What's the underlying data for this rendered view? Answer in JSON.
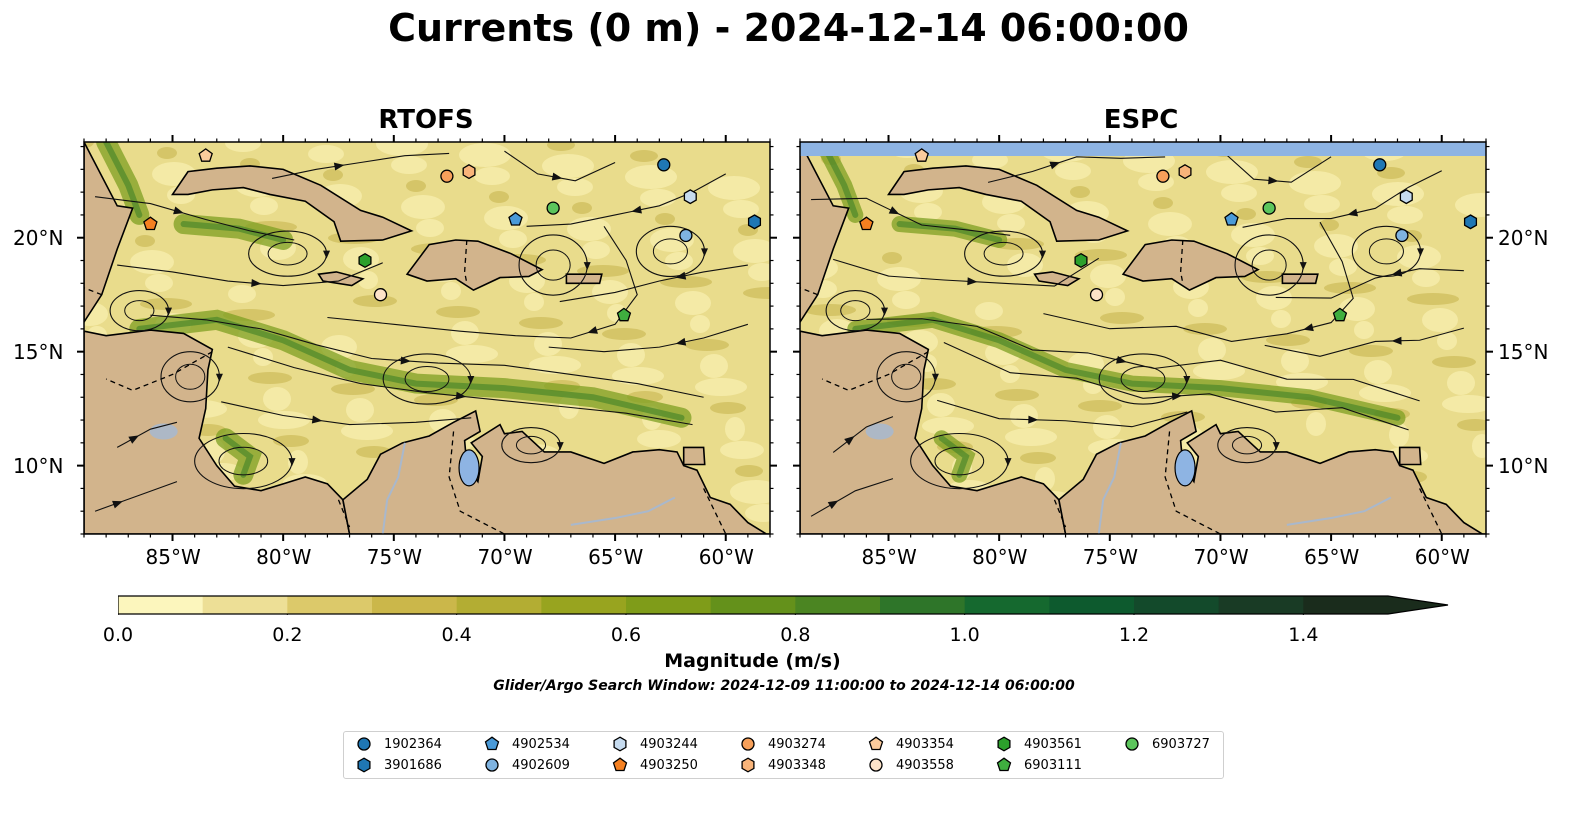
{
  "title": "Currents (0 m) - 2024-12-14 06:00:00",
  "panels": [
    {
      "title": "RTOFS"
    },
    {
      "title": "ESPC"
    }
  ],
  "lon_labels": [
    "85°W",
    "80°W",
    "75°W",
    "70°W",
    "65°W",
    "60°W"
  ],
  "lat_labels": [
    "20°N",
    "15°N",
    "10°N"
  ],
  "map_extent": {
    "lon": [
      -89,
      -58
    ],
    "lat": [
      7,
      24.2
    ]
  },
  "colorbar": {
    "label": "Magnitude (m/s)",
    "ticks": [
      "0.0",
      "0.2",
      "0.4",
      "0.6",
      "0.8",
      "1.0",
      "1.2",
      "1.4"
    ],
    "colors": [
      "#fcf6bd",
      "#eddf96",
      "#dcc96a",
      "#cbb74a",
      "#b3ad33",
      "#98a41f",
      "#7f9c19",
      "#64911b",
      "#4b8522",
      "#2e7529",
      "#15692f",
      "#0d5a2e",
      "#134a2b",
      "#193b25",
      "#1a2c1c"
    ]
  },
  "subtitle": "Glider/Argo Search Window: 2024-12-09 11:00:00 to 2024-12-14 06:00:00",
  "colors": {
    "land": "#d2b48c",
    "lake": "#8eb4e3",
    "river": "#a9b8cc"
  },
  "floats": [
    {
      "id": "1902364",
      "marker": "circle",
      "color": "#1f77b4",
      "lon": -62.8,
      "lat": 23.2
    },
    {
      "id": "3901686",
      "marker": "hexagon",
      "color": "#1f77b4",
      "lon": -58.7,
      "lat": 20.7
    },
    {
      "id": "4902534",
      "marker": "pentagon",
      "color": "#4a9ad8",
      "lon": -69.5,
      "lat": 20.8
    },
    {
      "id": "4902609",
      "marker": "circle",
      "color": "#7fb3e0",
      "lon": -61.8,
      "lat": 20.1
    },
    {
      "id": "4903244",
      "marker": "hexagon",
      "color": "#c6dbef",
      "lon": -61.6,
      "lat": 21.8
    },
    {
      "id": "4903250",
      "marker": "pentagon",
      "color": "#f58020",
      "lon": -86.0,
      "lat": 20.6
    },
    {
      "id": "4903274",
      "marker": "circle",
      "color": "#f7a05a",
      "lon": -72.6,
      "lat": 22.7
    },
    {
      "id": "4903348",
      "marker": "hexagon",
      "color": "#f8b47a",
      "lon": -71.6,
      "lat": 22.9
    },
    {
      "id": "4903354",
      "marker": "pentagon",
      "color": "#fbcb9c",
      "lon": -83.5,
      "lat": 23.6
    },
    {
      "id": "4903558",
      "marker": "circle",
      "color": "#fde3c8",
      "lon": -75.6,
      "lat": 17.5
    },
    {
      "id": "4903561",
      "marker": "hexagon",
      "color": "#2ca02c",
      "lon": -76.3,
      "lat": 19.0
    },
    {
      "id": "6903111",
      "marker": "pentagon",
      "color": "#3fae3f",
      "lon": -64.6,
      "lat": 16.6
    },
    {
      "id": "6903727",
      "marker": "circle",
      "color": "#5cc55c",
      "lon": -67.8,
      "lat": 21.3
    }
  ]
}
